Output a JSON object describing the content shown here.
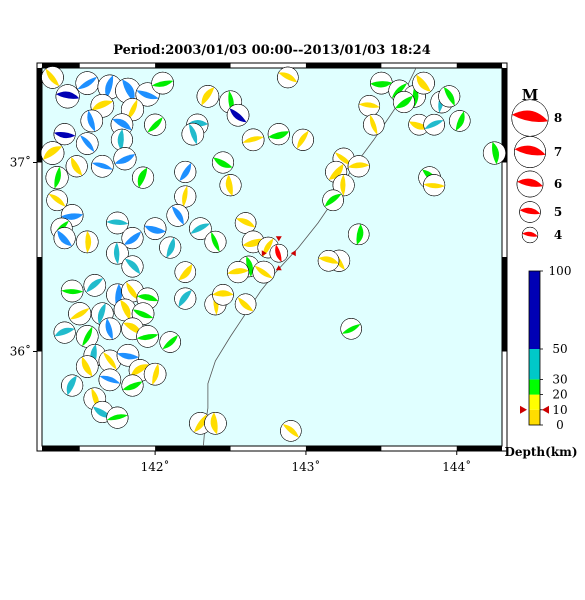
{
  "title": "Period:2003/01/03 00:00--2013/01/03 18:24",
  "map": {
    "lon_range": [
      141.25,
      144.3
    ],
    "lat_range": [
      35.5,
      37.5
    ],
    "ocean_color": "#e0ffff",
    "x_ticks": [
      {
        "value": 142,
        "label": "142˚"
      },
      {
        "value": 143,
        "label": "143˚"
      },
      {
        "value": 144,
        "label": "144˚"
      }
    ],
    "y_ticks": [
      {
        "value": 37,
        "label": "37˚"
      },
      {
        "value": 36,
        "label": "36˚"
      }
    ]
  },
  "trench": [
    [
      143.73,
      37.5
    ],
    [
      143.62,
      37.32
    ],
    [
      143.45,
      37.12
    ],
    [
      143.3,
      36.96
    ],
    [
      143.2,
      36.82
    ],
    [
      143.08,
      36.68
    ],
    [
      142.95,
      36.55
    ],
    [
      142.8,
      36.42
    ],
    [
      142.7,
      36.32
    ],
    [
      142.6,
      36.2
    ],
    [
      142.5,
      36.08
    ],
    [
      142.4,
      35.95
    ],
    [
      142.35,
      35.83
    ],
    [
      142.35,
      35.7
    ],
    [
      142.33,
      35.6
    ],
    [
      142.32,
      35.5
    ]
  ],
  "main_event": {
    "lon": 142.82,
    "lat": 36.52,
    "mag": 6,
    "color": "#ff0000"
  },
  "magnitude_legend": {
    "title": "M",
    "items": [
      {
        "label": "8",
        "mag": 8
      },
      {
        "label": "7",
        "mag": 7
      },
      {
        "label": "6",
        "mag": 6
      },
      {
        "label": "5",
        "mag": 5
      },
      {
        "label": "4",
        "mag": 4
      }
    ],
    "color": "#ff0000"
  },
  "depth_scale": {
    "label": "Depth(km)",
    "ticks": [
      "100",
      "50",
      "30",
      "20",
      "10",
      "0"
    ],
    "segments": [
      {
        "from": 0,
        "to": 10,
        "color": "#ffdd00"
      },
      {
        "from": 10,
        "to": 20,
        "color": "#ffff00"
      },
      {
        "from": 20,
        "to": 30,
        "color": "#00ff00"
      },
      {
        "from": 30,
        "to": 50,
        "color": "#00c8c8"
      },
      {
        "from": 50,
        "to": 100,
        "color": "#0000b4"
      }
    ]
  },
  "colors": {
    "shallow": "#ffdd00",
    "mid": "#00ee00",
    "deep": "#22bbcc",
    "blue": "#1e90ff",
    "navy": "#0000b4"
  },
  "chart_data": {
    "type": "scatter",
    "title": "Period:2003/01/03 00:00--2013/01/03 18:24",
    "xlim": [
      141.25,
      144.3
    ],
    "ylim": [
      35.5,
      37.5
    ],
    "series": [
      {
        "name": "",
        "points": [
          [
            141.32,
            37.45,
            5.2,
            "shallow"
          ],
          [
            141.42,
            37.35,
            5.5,
            "navy"
          ],
          [
            141.55,
            37.42,
            5.4,
            "blue"
          ],
          [
            141.7,
            37.4,
            5.6,
            "blue"
          ],
          [
            141.82,
            37.38,
            5.8,
            "blue"
          ],
          [
            141.95,
            37.36,
            5.5,
            "blue"
          ],
          [
            141.65,
            37.3,
            5.4,
            "shallow"
          ],
          [
            141.85,
            37.28,
            5.3,
            "shallow"
          ],
          [
            141.58,
            37.22,
            5.2,
            "blue"
          ],
          [
            141.78,
            37.2,
            5.2,
            "blue"
          ],
          [
            142.05,
            37.42,
            5.2,
            "mid"
          ],
          [
            142.35,
            37.35,
            5.2,
            "shallow"
          ],
          [
            142.5,
            37.32,
            5.3,
            "mid"
          ],
          [
            142.55,
            37.25,
            5.2,
            "navy"
          ],
          [
            142.28,
            37.2,
            5.1,
            "deep"
          ],
          [
            142.0,
            37.2,
            5.1,
            "mid"
          ],
          [
            141.78,
            37.12,
            5.1,
            "deep"
          ],
          [
            141.55,
            37.1,
            5.2,
            "blue"
          ],
          [
            141.4,
            37.15,
            5.1,
            "navy"
          ],
          [
            141.32,
            37.05,
            5.4,
            "shallow"
          ],
          [
            141.35,
            36.92,
            5.3,
            "mid"
          ],
          [
            141.48,
            36.98,
            5.1,
            "shallow"
          ],
          [
            141.65,
            36.98,
            5.2,
            "blue"
          ],
          [
            141.8,
            37.02,
            5.3,
            "blue"
          ],
          [
            141.92,
            36.92,
            5.1,
            "mid"
          ],
          [
            142.25,
            37.15,
            5.2,
            "deep"
          ],
          [
            142.45,
            37.0,
            5.1,
            "mid"
          ],
          [
            142.65,
            37.12,
            5.2,
            "shallow"
          ],
          [
            142.2,
            36.95,
            5.1,
            "blue"
          ],
          [
            142.5,
            36.88,
            5.1,
            "shallow"
          ],
          [
            141.35,
            36.8,
            5.0,
            "shallow"
          ],
          [
            141.45,
            36.72,
            5.2,
            "blue"
          ],
          [
            141.38,
            36.65,
            5.1,
            "mid"
          ],
          [
            141.55,
            36.58,
            5.2,
            "shallow"
          ],
          [
            141.4,
            36.6,
            5.1,
            "blue"
          ],
          [
            141.75,
            36.68,
            5.2,
            "deep"
          ],
          [
            141.85,
            36.6,
            5.1,
            "blue"
          ],
          [
            142.2,
            36.82,
            5.1,
            "shallow"
          ],
          [
            142.15,
            36.72,
            5.2,
            "blue"
          ],
          [
            142.0,
            36.65,
            5.2,
            "blue"
          ],
          [
            142.3,
            36.65,
            5.2,
            "deep"
          ],
          [
            142.1,
            36.55,
            5.1,
            "deep"
          ],
          [
            142.4,
            36.58,
            5.1,
            "mid"
          ],
          [
            142.6,
            36.68,
            5.0,
            "shallow"
          ],
          [
            142.65,
            36.58,
            5.2,
            "shallow"
          ],
          [
            142.75,
            36.55,
            5.0,
            "shallow"
          ],
          [
            142.62,
            36.45,
            5.0,
            "mid"
          ],
          [
            142.72,
            36.42,
            5.2,
            "shallow"
          ],
          [
            142.55,
            36.42,
            5.1,
            "shallow"
          ],
          [
            142.2,
            36.42,
            5.0,
            "shallow"
          ],
          [
            141.75,
            36.52,
            5.2,
            "deep"
          ],
          [
            141.85,
            36.45,
            5.1,
            "deep"
          ],
          [
            141.45,
            36.32,
            5.2,
            "mid"
          ],
          [
            141.6,
            36.35,
            5.2,
            "deep"
          ],
          [
            141.75,
            36.3,
            5.2,
            "blue"
          ],
          [
            141.85,
            36.32,
            5.2,
            "shallow"
          ],
          [
            141.95,
            36.28,
            5.1,
            "mid"
          ],
          [
            141.5,
            36.2,
            5.3,
            "shallow"
          ],
          [
            141.65,
            36.2,
            5.2,
            "deep"
          ],
          [
            141.8,
            36.22,
            5.2,
            "shallow"
          ],
          [
            141.92,
            36.2,
            5.2,
            "mid"
          ],
          [
            141.4,
            36.1,
            5.1,
            "deep"
          ],
          [
            141.55,
            36.08,
            5.2,
            "mid"
          ],
          [
            141.7,
            36.12,
            5.2,
            "blue"
          ],
          [
            141.85,
            36.12,
            5.2,
            "shallow"
          ],
          [
            141.95,
            36.08,
            5.2,
            "mid"
          ],
          [
            142.2,
            36.28,
            5.1,
            "deep"
          ],
          [
            142.4,
            36.25,
            5.1,
            "shallow"
          ],
          [
            142.6,
            36.25,
            5.0,
            "shallow"
          ],
          [
            142.45,
            36.3,
            5.0,
            "shallow"
          ],
          [
            142.1,
            36.05,
            5.0,
            "mid"
          ],
          [
            141.6,
            35.98,
            5.2,
            "deep"
          ],
          [
            141.7,
            35.95,
            5.2,
            "shallow"
          ],
          [
            141.82,
            35.98,
            5.2,
            "blue"
          ],
          [
            141.9,
            35.9,
            5.2,
            "shallow"
          ],
          [
            142.0,
            35.88,
            5.2,
            "shallow"
          ],
          [
            141.55,
            35.92,
            5.2,
            "shallow"
          ],
          [
            141.7,
            35.85,
            5.2,
            "blue"
          ],
          [
            141.85,
            35.82,
            5.1,
            "mid"
          ],
          [
            141.45,
            35.82,
            5.1,
            "deep"
          ],
          [
            141.6,
            35.75,
            5.2,
            "shallow"
          ],
          [
            141.65,
            35.68,
            5.1,
            "deep"
          ],
          [
            141.75,
            35.65,
            5.1,
            "mid"
          ],
          [
            142.3,
            35.62,
            5.2,
            "shallow"
          ],
          [
            142.4,
            35.62,
            5.2,
            "shallow"
          ],
          [
            142.9,
            35.58,
            5.0,
            "shallow"
          ],
          [
            143.5,
            37.42,
            5.2,
            "mid"
          ],
          [
            143.62,
            37.38,
            5.1,
            "mid"
          ],
          [
            143.72,
            37.35,
            5.2,
            "mid"
          ],
          [
            143.78,
            37.42,
            5.2,
            "shallow"
          ],
          [
            143.42,
            37.3,
            5.0,
            "shallow"
          ],
          [
            143.65,
            37.32,
            5.1,
            "mid"
          ],
          [
            143.9,
            37.32,
            5.2,
            "deep"
          ],
          [
            143.95,
            37.35,
            5.1,
            "mid"
          ],
          [
            143.75,
            37.2,
            5.0,
            "shallow"
          ],
          [
            143.85,
            37.2,
            5.0,
            "deep"
          ],
          [
            144.02,
            37.22,
            5.0,
            "mid"
          ],
          [
            143.45,
            37.2,
            5.0,
            "shallow"
          ],
          [
            142.88,
            37.45,
            5.0,
            "shallow"
          ],
          [
            142.82,
            37.15,
            5.1,
            "mid"
          ],
          [
            142.98,
            37.12,
            5.1,
            "shallow"
          ],
          [
            144.25,
            37.05,
            5.3,
            "mid"
          ],
          [
            143.25,
            37.02,
            5.1,
            "shallow"
          ],
          [
            143.35,
            36.98,
            5.1,
            "shallow"
          ],
          [
            143.2,
            36.95,
            5.1,
            "shallow"
          ],
          [
            143.25,
            36.88,
            5.1,
            "shallow"
          ],
          [
            143.82,
            36.92,
            5.2,
            "mid"
          ],
          [
            143.85,
            36.88,
            5.1,
            "shallow"
          ],
          [
            143.18,
            36.8,
            5.0,
            "mid"
          ],
          [
            143.35,
            36.62,
            5.0,
            "mid"
          ],
          [
            143.22,
            36.48,
            5.1,
            "shallow"
          ],
          [
            143.15,
            36.48,
            5.0,
            "shallow"
          ],
          [
            143.3,
            36.12,
            5.0,
            "mid"
          ]
        ]
      },
      {
        "name": "",
        "points": [
          [
            142.82,
            36.52,
            6.0,
            "main"
          ]
        ]
      }
    ]
  }
}
